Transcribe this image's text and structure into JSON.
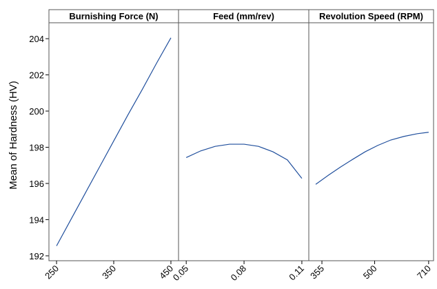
{
  "chart_data": {
    "type": "line",
    "y_label": "Mean of Hardness (HV)",
    "ylim": [
      191.73,
      204.88
    ],
    "yticks": [
      192,
      194,
      196,
      198,
      200,
      202,
      204
    ],
    "color": "#1f4e9c",
    "panels": [
      {
        "title": "Burnishing Force (N)",
        "xlim": [
          236.7,
          463.3
        ],
        "xticks": [
          250,
          350,
          450
        ],
        "x": [
          250,
          275,
          300,
          325,
          350,
          375,
          400,
          425,
          450
        ],
        "values": [
          192.55,
          194.0,
          195.45,
          196.9,
          198.35,
          199.8,
          201.2,
          202.65,
          204.05
        ]
      },
      {
        "title": "Feed (mm/rev)",
        "xlim": [
          0.046,
          0.1136
        ],
        "xticks": [
          0.05,
          0.08,
          0.11
        ],
        "x": [
          0.05,
          0.0575,
          0.065,
          0.0725,
          0.08,
          0.0875,
          0.095,
          0.1025,
          0.11
        ],
        "values": [
          197.43,
          197.8,
          198.05,
          198.17,
          198.17,
          198.05,
          197.75,
          197.3,
          196.28
        ]
      },
      {
        "title": "Revolution Speed (RPM)",
        "xscale": "log",
        "xlim": [
          326,
          733
        ],
        "xticks": [
          355,
          500,
          710
        ],
        "x": [
          341,
          370,
          400,
          435,
          470,
          510,
          555,
          605,
          660,
          710
        ],
        "values": [
          195.95,
          196.45,
          196.9,
          197.35,
          197.75,
          198.1,
          198.4,
          198.6,
          198.75,
          198.83
        ]
      }
    ]
  }
}
